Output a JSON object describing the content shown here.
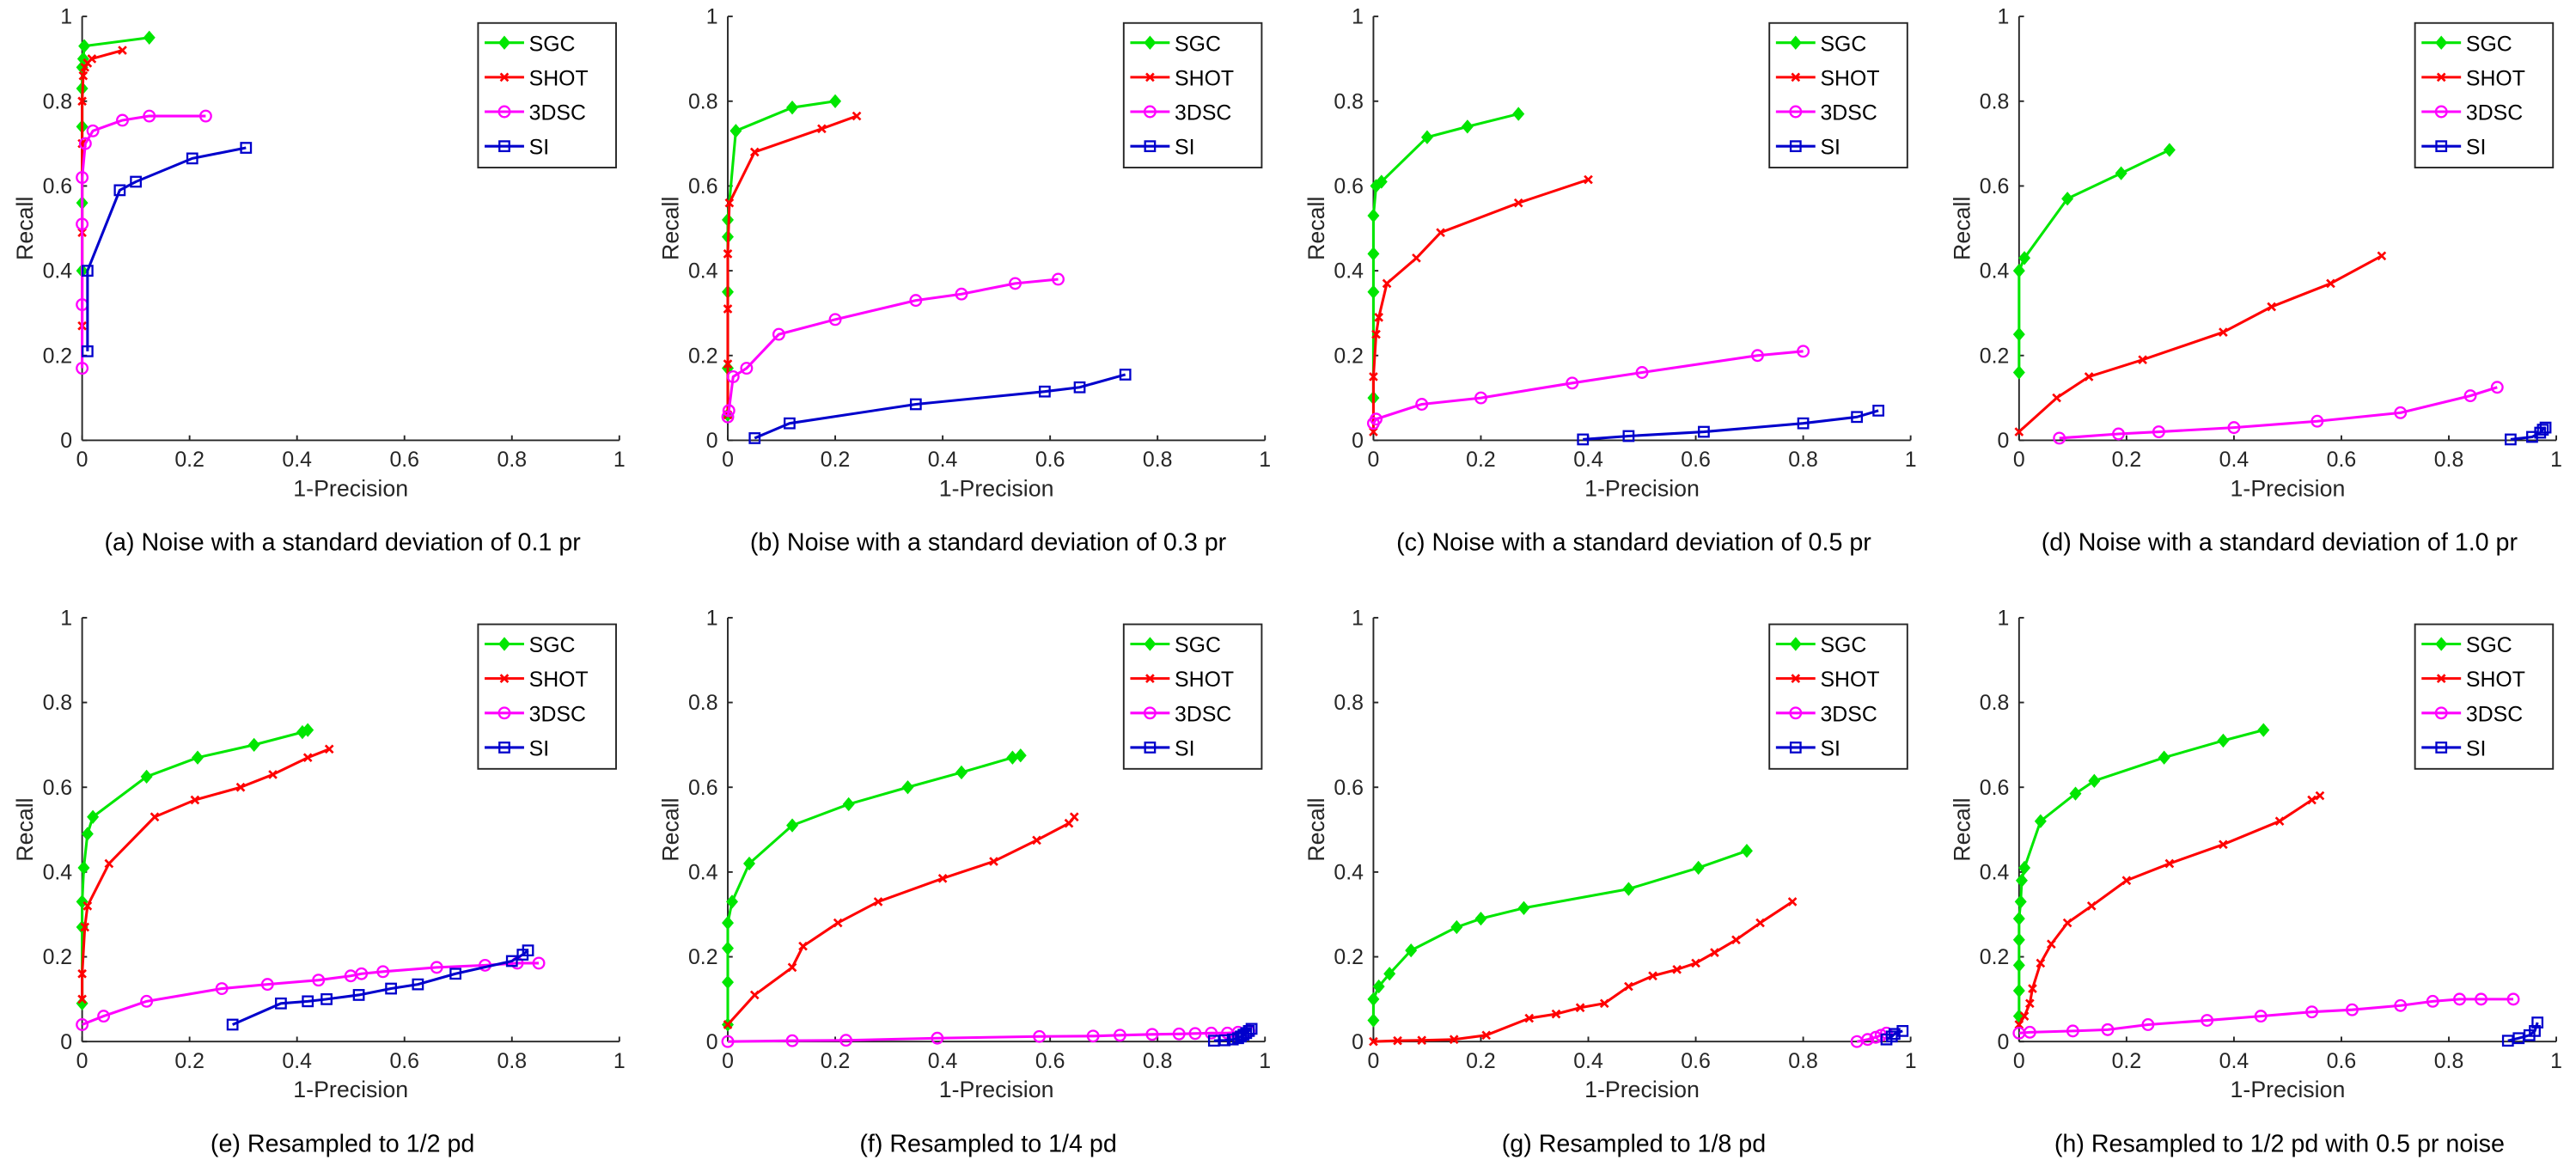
{
  "chart_data": [
    {
      "type": "line",
      "caption": "(a) Noise with a standard deviation of 0.1 pr",
      "xlabel": "1-Precision",
      "ylabel": "Recall",
      "xlim": [
        0,
        1
      ],
      "ylim": [
        0,
        1
      ],
      "xticks": [
        "0",
        "0.2",
        "0.4",
        "0.6",
        "0.8",
        "1"
      ],
      "yticks": [
        "0",
        "0.2",
        "0.4",
        "0.6",
        "0.8",
        "1"
      ],
      "legend": "top-right",
      "series": [
        {
          "name": "SGC",
          "x": [
            0,
            0,
            0,
            0,
            0,
            0.002,
            0.004,
            0.125
          ],
          "y": [
            0.4,
            0.56,
            0.74,
            0.83,
            0.88,
            0.9,
            0.93,
            0.95
          ]
        },
        {
          "name": "SHOT",
          "x": [
            0,
            0,
            0,
            0,
            0.002,
            0.005,
            0.01,
            0.018,
            0.075
          ],
          "y": [
            0.27,
            0.49,
            0.7,
            0.8,
            0.86,
            0.88,
            0.89,
            0.9,
            0.92
          ]
        },
        {
          "name": "3DSC",
          "x": [
            0,
            0,
            0,
            0,
            0.006,
            0.02,
            0.075,
            0.125,
            0.23
          ],
          "y": [
            0.17,
            0.32,
            0.51,
            0.62,
            0.7,
            0.73,
            0.755,
            0.765,
            0.765
          ]
        },
        {
          "name": "SI",
          "x": [
            0.01,
            0.01,
            0.07,
            0.1,
            0.205,
            0.305
          ],
          "y": [
            0.21,
            0.4,
            0.59,
            0.61,
            0.665,
            0.69
          ]
        }
      ]
    },
    {
      "type": "line",
      "caption": "(b) Noise with a standard deviation of 0.3 pr",
      "xlabel": "1-Precision",
      "ylabel": "Recall",
      "xlim": [
        0,
        1
      ],
      "ylim": [
        0,
        1
      ],
      "xticks": [
        "0",
        "0.2",
        "0.4",
        "0.6",
        "0.8",
        "1"
      ],
      "yticks": [
        "0",
        "0.2",
        "0.4",
        "0.6",
        "0.8",
        "1"
      ],
      "legend": "top-right",
      "series": [
        {
          "name": "SGC",
          "x": [
            0,
            0,
            0,
            0,
            0,
            0.015,
            0.12,
            0.2
          ],
          "y": [
            0.06,
            0.17,
            0.35,
            0.48,
            0.52,
            0.73,
            0.785,
            0.8
          ]
        },
        {
          "name": "SHOT",
          "x": [
            0,
            0,
            0,
            0,
            0.003,
            0.05,
            0.175,
            0.24
          ],
          "y": [
            0.06,
            0.18,
            0.31,
            0.44,
            0.56,
            0.68,
            0.735,
            0.765
          ]
        },
        {
          "name": "3DSC",
          "x": [
            0,
            0.002,
            0.01,
            0.035,
            0.095,
            0.2,
            0.35,
            0.435,
            0.535,
            0.615
          ],
          "y": [
            0.055,
            0.07,
            0.15,
            0.17,
            0.25,
            0.285,
            0.33,
            0.345,
            0.37,
            0.38
          ]
        },
        {
          "name": "SI",
          "x": [
            0.05,
            0.115,
            0.35,
            0.59,
            0.655,
            0.74
          ],
          "y": [
            0.005,
            0.04,
            0.085,
            0.115,
            0.125,
            0.155
          ]
        }
      ]
    },
    {
      "type": "line",
      "caption": "(c) Noise with a standard deviation of 0.5 pr",
      "xlabel": "1-Precision",
      "ylabel": "Recall",
      "xlim": [
        0,
        1
      ],
      "ylim": [
        0,
        1
      ],
      "xticks": [
        "0",
        "0.2",
        "0.4",
        "0.6",
        "0.8",
        "1"
      ],
      "yticks": [
        "0",
        "0.2",
        "0.4",
        "0.6",
        "0.8",
        "1"
      ],
      "legend": "top-right",
      "series": [
        {
          "name": "SGC",
          "x": [
            0,
            0,
            0,
            0,
            0.005,
            0.015,
            0.1,
            0.175,
            0.27
          ],
          "y": [
            0.1,
            0.35,
            0.44,
            0.53,
            0.6,
            0.61,
            0.715,
            0.74,
            0.77
          ]
        },
        {
          "name": "SHOT",
          "x": [
            0,
            0,
            0.005,
            0.01,
            0.025,
            0.08,
            0.125,
            0.27,
            0.4
          ],
          "y": [
            0.02,
            0.15,
            0.25,
            0.29,
            0.37,
            0.43,
            0.49,
            0.56,
            0.615
          ]
        },
        {
          "name": "3DSC",
          "x": [
            0,
            0.005,
            0.09,
            0.2,
            0.37,
            0.5,
            0.715,
            0.8
          ],
          "y": [
            0.04,
            0.05,
            0.085,
            0.1,
            0.135,
            0.16,
            0.2,
            0.21
          ]
        },
        {
          "name": "SI",
          "x": [
            0.39,
            0.475,
            0.615,
            0.8,
            0.9,
            0.94
          ],
          "y": [
            0.002,
            0.01,
            0.02,
            0.04,
            0.055,
            0.07
          ]
        }
      ]
    },
    {
      "type": "line",
      "caption": "(d) Noise with a standard deviation of 1.0 pr",
      "xlabel": "1-Precision",
      "ylabel": "Recall",
      "xlim": [
        0,
        1
      ],
      "ylim": [
        0,
        1
      ],
      "xticks": [
        "0",
        "0.2",
        "0.4",
        "0.6",
        "0.8",
        "1"
      ],
      "yticks": [
        "0",
        "0.2",
        "0.4",
        "0.6",
        "0.8",
        "1"
      ],
      "legend": "top-right",
      "series": [
        {
          "name": "SGC",
          "x": [
            0,
            0,
            0,
            0.01,
            0.09,
            0.19,
            0.28
          ],
          "y": [
            0.16,
            0.25,
            0.4,
            0.43,
            0.57,
            0.63,
            0.685
          ]
        },
        {
          "name": "SHOT",
          "x": [
            0,
            0.07,
            0.13,
            0.23,
            0.38,
            0.47,
            0.58,
            0.675
          ],
          "y": [
            0.02,
            0.1,
            0.15,
            0.19,
            0.255,
            0.315,
            0.37,
            0.435
          ]
        },
        {
          "name": "3DSC",
          "x": [
            0.075,
            0.185,
            0.26,
            0.4,
            0.555,
            0.71,
            0.84,
            0.89
          ],
          "y": [
            0.005,
            0.015,
            0.02,
            0.03,
            0.045,
            0.065,
            0.105,
            0.125
          ]
        },
        {
          "name": "SI",
          "x": [
            0.915,
            0.955,
            0.97,
            0.975,
            0.98
          ],
          "y": [
            0.002,
            0.008,
            0.018,
            0.025,
            0.03
          ]
        }
      ]
    },
    {
      "type": "line",
      "caption": "(e) Resampled to 1/2 pd",
      "xlabel": "1-Precision",
      "ylabel": "Recall",
      "xlim": [
        0,
        1
      ],
      "ylim": [
        0,
        1
      ],
      "xticks": [
        "0",
        "0.2",
        "0.4",
        "0.6",
        "0.8",
        "1"
      ],
      "yticks": [
        "0",
        "0.2",
        "0.4",
        "0.6",
        "0.8",
        "1"
      ],
      "legend": "top-right",
      "series": [
        {
          "name": "SGC",
          "x": [
            0,
            0,
            0,
            0.003,
            0.01,
            0.02,
            0.12,
            0.215,
            0.32,
            0.41,
            0.42
          ],
          "y": [
            0.09,
            0.27,
            0.33,
            0.41,
            0.49,
            0.53,
            0.625,
            0.67,
            0.7,
            0.73,
            0.735
          ]
        },
        {
          "name": "SHOT",
          "x": [
            0,
            0,
            0.005,
            0.01,
            0.05,
            0.135,
            0.21,
            0.295,
            0.355,
            0.42,
            0.46
          ],
          "y": [
            0.1,
            0.16,
            0.27,
            0.32,
            0.42,
            0.53,
            0.57,
            0.6,
            0.63,
            0.67,
            0.69
          ]
        },
        {
          "name": "3DSC",
          "x": [
            0,
            0.04,
            0.12,
            0.26,
            0.345,
            0.44,
            0.5,
            0.52,
            0.56,
            0.66,
            0.75,
            0.81,
            0.85
          ],
          "y": [
            0.04,
            0.06,
            0.095,
            0.125,
            0.135,
            0.145,
            0.155,
            0.16,
            0.165,
            0.175,
            0.18,
            0.185,
            0.185
          ]
        },
        {
          "name": "SI",
          "x": [
            0.28,
            0.37,
            0.42,
            0.455,
            0.515,
            0.575,
            0.625,
            0.695,
            0.8,
            0.82,
            0.83
          ],
          "y": [
            0.04,
            0.09,
            0.095,
            0.1,
            0.11,
            0.125,
            0.135,
            0.16,
            0.19,
            0.205,
            0.215
          ]
        }
      ]
    },
    {
      "type": "line",
      "caption": "(f) Resampled to 1/4 pd",
      "xlabel": "1-Precision",
      "ylabel": "Recall",
      "xlim": [
        0,
        1
      ],
      "ylim": [
        0,
        1
      ],
      "xticks": [
        "0",
        "0.2",
        "0.4",
        "0.6",
        "0.8",
        "1"
      ],
      "yticks": [
        "0",
        "0.2",
        "0.4",
        "0.6",
        "0.8",
        "1"
      ],
      "legend": "top-right",
      "series": [
        {
          "name": "SGC",
          "x": [
            0,
            0,
            0,
            0,
            0.008,
            0.04,
            0.12,
            0.225,
            0.335,
            0.435,
            0.53,
            0.545
          ],
          "y": [
            0.04,
            0.14,
            0.22,
            0.28,
            0.33,
            0.42,
            0.51,
            0.56,
            0.6,
            0.635,
            0.67,
            0.675
          ]
        },
        {
          "name": "SHOT",
          "x": [
            0,
            0.05,
            0.12,
            0.14,
            0.205,
            0.28,
            0.4,
            0.495,
            0.575,
            0.635,
            0.645
          ],
          "y": [
            0.04,
            0.11,
            0.175,
            0.225,
            0.28,
            0.33,
            0.385,
            0.425,
            0.475,
            0.515,
            0.53
          ]
        },
        {
          "name": "3DSC",
          "x": [
            0,
            0.12,
            0.22,
            0.39,
            0.58,
            0.68,
            0.73,
            0.79,
            0.84,
            0.87,
            0.9,
            0.93,
            0.95,
            0.97
          ],
          "y": [
            0,
            0.002,
            0.003,
            0.008,
            0.012,
            0.013,
            0.015,
            0.017,
            0.018,
            0.019,
            0.02,
            0.02,
            0.022,
            0.025
          ]
        },
        {
          "name": "SI",
          "x": [
            0.905,
            0.925,
            0.94,
            0.95,
            0.955,
            0.96,
            0.965,
            0.97,
            0.975
          ],
          "y": [
            0.002,
            0.003,
            0.005,
            0.008,
            0.012,
            0.016,
            0.02,
            0.025,
            0.03
          ]
        }
      ]
    },
    {
      "type": "line",
      "caption": "(g) Resampled to 1/8 pd",
      "xlabel": "1-Precision",
      "ylabel": "Recall",
      "xlim": [
        0,
        1
      ],
      "ylim": [
        0,
        1
      ],
      "xticks": [
        "0",
        "0.2",
        "0.4",
        "0.6",
        "0.8",
        "1"
      ],
      "yticks": [
        "0",
        "0.2",
        "0.4",
        "0.6",
        "0.8",
        "1"
      ],
      "legend": "top-right",
      "series": [
        {
          "name": "SGC",
          "x": [
            0,
            0,
            0.01,
            0.03,
            0.07,
            0.155,
            0.2,
            0.28,
            0.475,
            0.605,
            0.695
          ],
          "y": [
            0.05,
            0.1,
            0.13,
            0.16,
            0.215,
            0.27,
            0.29,
            0.315,
            0.36,
            0.41,
            0.45
          ]
        },
        {
          "name": "SHOT",
          "x": [
            0,
            0.045,
            0.09,
            0.15,
            0.21,
            0.29,
            0.34,
            0.385,
            0.43,
            0.475,
            0.52,
            0.565,
            0.6,
            0.635,
            0.675,
            0.72,
            0.78
          ],
          "y": [
            0,
            0.002,
            0.003,
            0.005,
            0.015,
            0.055,
            0.065,
            0.08,
            0.09,
            0.13,
            0.155,
            0.17,
            0.185,
            0.21,
            0.24,
            0.28,
            0.33
          ]
        },
        {
          "name": "3DSC",
          "x": [
            0.9,
            0.92,
            0.935,
            0.945,
            0.955
          ],
          "y": [
            0,
            0.005,
            0.01,
            0.015,
            0.02
          ]
        },
        {
          "name": "SI",
          "x": [
            0.955,
            0.965,
            0.97,
            0.985
          ],
          "y": [
            0.005,
            0.012,
            0.018,
            0.025
          ]
        }
      ]
    },
    {
      "type": "line",
      "caption": "(h) Resampled to 1/2 pd with 0.5 pr noise",
      "xlabel": "1-Precision",
      "ylabel": "Recall",
      "xlim": [
        0,
        1
      ],
      "ylim": [
        0,
        1
      ],
      "xticks": [
        "0",
        "0.2",
        "0.4",
        "0.6",
        "0.8",
        "1"
      ],
      "yticks": [
        "0",
        "0.2",
        "0.4",
        "0.6",
        "0.8",
        "1"
      ],
      "legend": "top-right",
      "series": [
        {
          "name": "SGC",
          "x": [
            0,
            0,
            0,
            0,
            0,
            0.003,
            0.005,
            0.01,
            0.04,
            0.105,
            0.14,
            0.27,
            0.38,
            0.455
          ],
          "y": [
            0.06,
            0.12,
            0.18,
            0.24,
            0.29,
            0.33,
            0.38,
            0.41,
            0.52,
            0.585,
            0.615,
            0.67,
            0.71,
            0.735
          ]
        },
        {
          "name": "SHOT",
          "x": [
            0,
            0.01,
            0.02,
            0.025,
            0.04,
            0.06,
            0.09,
            0.135,
            0.2,
            0.28,
            0.38,
            0.485,
            0.545,
            0.56
          ],
          "y": [
            0.04,
            0.06,
            0.09,
            0.125,
            0.185,
            0.23,
            0.28,
            0.32,
            0.38,
            0.42,
            0.465,
            0.52,
            0.57,
            0.58
          ]
        },
        {
          "name": "3DSC",
          "x": [
            0,
            0.02,
            0.1,
            0.165,
            0.24,
            0.35,
            0.45,
            0.545,
            0.62,
            0.71,
            0.77,
            0.82,
            0.86,
            0.92
          ],
          "y": [
            0.02,
            0.022,
            0.025,
            0.028,
            0.04,
            0.05,
            0.06,
            0.07,
            0.075,
            0.085,
            0.095,
            0.1,
            0.1,
            0.1
          ]
        },
        {
          "name": "SI",
          "x": [
            0.91,
            0.93,
            0.95,
            0.96,
            0.965
          ],
          "y": [
            0.002,
            0.008,
            0.015,
            0.025,
            0.045
          ]
        }
      ]
    }
  ]
}
